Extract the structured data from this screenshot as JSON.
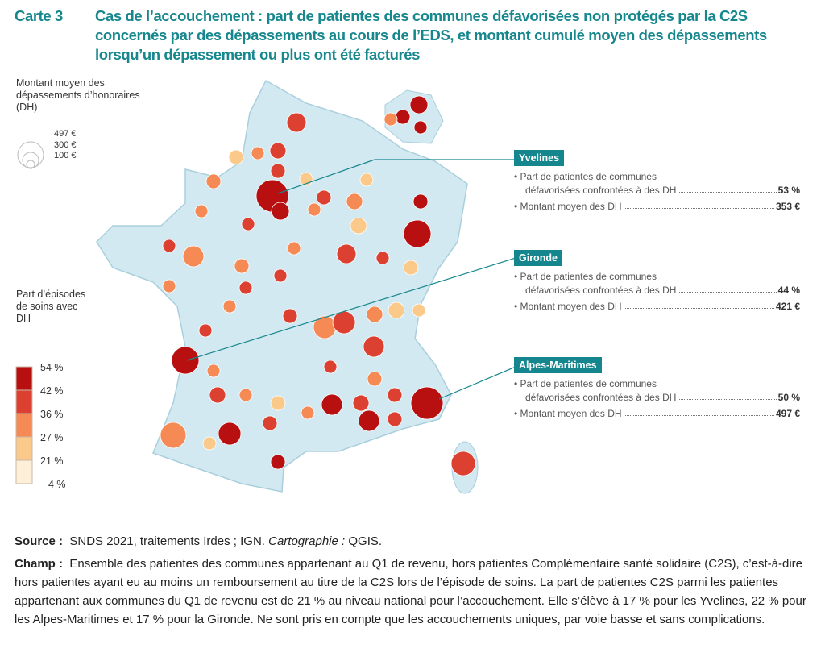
{
  "title": {
    "number": "Carte 3",
    "text": "Cas de l’accouchement : part de patientes des communes défavorisées non protégés par la C2S concernés par des dépassements au cours de l’EDS, et montant cumulé moyen des dépassements lorsqu’un dépassement ou plus ont été facturés"
  },
  "legend_size": {
    "title": "Montant moyen des dépassements d’honoraires (DH)",
    "values": [
      "497 €",
      "300 €",
      "100 €"
    ]
  },
  "legend_color": {
    "title": "Part d’épisodes de soins avec DH",
    "breaks": [
      "54 %",
      "42 %",
      "36 %",
      "27 %",
      "21 %",
      "4 %"
    ],
    "colors": [
      "#b80f10",
      "#dc4030",
      "#f58a55",
      "#fbc98a",
      "#fdefd8"
    ]
  },
  "callouts": [
    {
      "name": "Yvelines",
      "line1a": "• Part de patientes de communes",
      "line1b": "défavorisées confrontées à des DH",
      "share": "53 %",
      "line2": "• Montant moyen des DH",
      "amount": "353 €"
    },
    {
      "name": "Gironde",
      "line1a": "• Part de patientes de communes",
      "line1b": "défavorisées confrontées à des DH",
      "share": "44 %",
      "line2": "• Montant moyen des DH",
      "amount": "421 €"
    },
    {
      "name": "Alpes-Maritimes",
      "line1a": "• Part de patientes de communes",
      "line1b": "défavorisées confrontées à des DH",
      "share": "50 %",
      "line2": "• Montant moyen des DH",
      "amount": "497 €"
    }
  ],
  "source": {
    "label": "Source :",
    "text": "SNDS 2021, traitements Irdes ; IGN.",
    "carto_label": "Cartographie :",
    "carto": "QGIS."
  },
  "champ": {
    "label": "Champ :",
    "text": "Ensemble des patientes des communes appartenant au Q1 de revenu, hors patientes Complémentaire santé solidaire (C2S), c’est-à-dire hors patientes ayant eu au moins un remboursement au titre de la C2S lors de l’épisode de soins. La part de patientes C2S parmi les patientes appartenant aux communes du Q1 de revenu est de 21 % au niveau national pour l’accouchement. Elle s’élève à 17 % pour les Yvelines, 22 % pour les Alpes-Maritimes et 17 % pour la Gironde. Ne sont pris en compte que les accouchements uniques, par voie basse et sans complications."
  },
  "colors": {
    "accent": "#17878e",
    "land": "#d6ebf2",
    "border": "#ffffff"
  }
}
